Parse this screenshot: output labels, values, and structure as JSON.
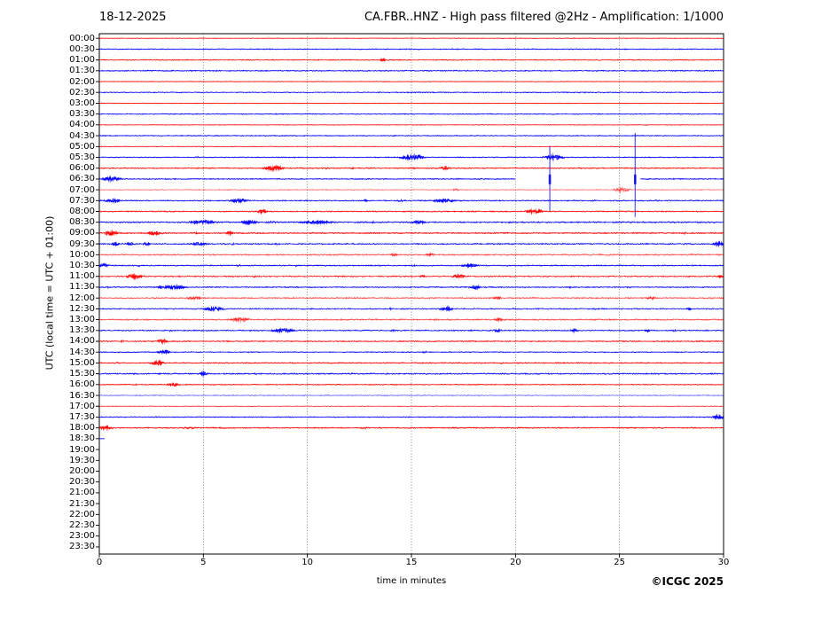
{
  "header": {
    "date": "18-12-2025",
    "title": "CA.FBR..HNZ - High pass filtered @2Hz - Amplification: 1/1000"
  },
  "footer": {
    "copyright": "©ICGC 2025"
  },
  "chart_data": {
    "type": "line",
    "variant": "helicorder-drumplot",
    "title": "CA.FBR..HNZ - High pass filtered @2Hz - Amplification: 1/1000",
    "date_label": "18-12-2025",
    "xlabel": "time in minutes",
    "ylabel": "UTC (local time = UTC + 01:00)",
    "xlim": [
      0,
      30
    ],
    "x_ticks": [
      0,
      5,
      10,
      15,
      20,
      25,
      30
    ],
    "grid": "dotted-vertical-at-5-10-15-20-25",
    "legend": "none",
    "colors": {
      "red": "#ff0000",
      "blue": "#0000ff",
      "grid": "#666666",
      "frame": "#000000"
    },
    "row_minutes_span": 30,
    "rows": [
      {
        "label": "00:00",
        "color": "red",
        "style": "normal",
        "noise": 0.4,
        "events": []
      },
      {
        "label": "00:30",
        "color": "blue",
        "style": "normal",
        "noise": 0.6,
        "events": []
      },
      {
        "label": "01:00",
        "color": "red",
        "style": "normal",
        "noise": 0.6,
        "events": [
          [
            13.5,
            13.75,
            2.2
          ]
        ]
      },
      {
        "label": "01:30",
        "color": "blue",
        "style": "normal",
        "noise": 0.7,
        "events": []
      },
      {
        "label": "02:00",
        "color": "red",
        "style": "normal",
        "noise": 0.4,
        "events": []
      },
      {
        "label": "02:30",
        "color": "blue",
        "style": "normal",
        "noise": 0.6,
        "events": []
      },
      {
        "label": "03:00",
        "color": "red",
        "style": "normal",
        "noise": 0.4,
        "events": []
      },
      {
        "label": "03:30",
        "color": "blue",
        "style": "normal",
        "noise": 0.6,
        "events": []
      },
      {
        "label": "04:00",
        "color": "red",
        "style": "normal",
        "noise": 0.4,
        "events": []
      },
      {
        "label": "04:30",
        "color": "blue",
        "style": "normal",
        "noise": 0.6,
        "events": []
      },
      {
        "label": "05:00",
        "color": "red",
        "style": "normal",
        "noise": 0.4,
        "events": []
      },
      {
        "label": "05:30",
        "color": "blue",
        "style": "normal",
        "noise": 0.6,
        "events": [
          [
            4.6,
            4.85,
            1.4
          ],
          [
            9.3,
            9.5,
            1.2
          ],
          [
            14.5,
            15.6,
            3.2
          ],
          [
            21.4,
            22.3,
            3.2
          ]
        ]
      },
      {
        "label": "06:00",
        "color": "red",
        "style": "normal",
        "noise": 0.7,
        "events": [
          [
            7.9,
            8.9,
            3.0
          ],
          [
            10.8,
            11.1,
            1.4
          ],
          [
            12.0,
            12.3,
            1.2
          ],
          [
            13.0,
            13.3,
            1.2
          ],
          [
            15.0,
            15.3,
            1.2
          ],
          [
            16.4,
            16.8,
            2.2
          ]
        ]
      },
      {
        "label": "06:30",
        "color": "blue",
        "style": "normal",
        "noise": 0.7,
        "segments": [
          [
            0,
            20
          ],
          [
            26,
            30
          ]
        ],
        "events": [
          [
            0.2,
            1.0,
            2.8
          ],
          [
            17.0,
            17.3,
            1.2
          ]
        ],
        "spikes": [
          [
            21.65,
            3.0,
            2.95
          ],
          [
            25.75,
            4.25,
            3.5
          ]
        ]
      },
      {
        "label": "07:00",
        "color": "red",
        "style": "pale",
        "noise": 0.7,
        "events": [
          [
            17.0,
            17.3,
            2.0
          ],
          [
            24.7,
            25.5,
            2.8
          ]
        ]
      },
      {
        "label": "07:30",
        "color": "blue",
        "style": "normal",
        "noise": 0.7,
        "events": [
          [
            0.3,
            1.0,
            2.4
          ],
          [
            6.3,
            7.1,
            2.4
          ],
          [
            12.7,
            12.95,
            1.8
          ],
          [
            14.2,
            14.9,
            1.4
          ],
          [
            16.0,
            17.1,
            2.2
          ],
          [
            23.6,
            23.85,
            1.5
          ]
        ]
      },
      {
        "label": "08:00",
        "color": "red",
        "style": "normal",
        "noise": 0.7,
        "events": [
          [
            0.5,
            0.75,
            1.4
          ],
          [
            7.6,
            8.05,
            2.4
          ],
          [
            14.5,
            14.75,
            1.2
          ],
          [
            19.0,
            19.2,
            1.2
          ],
          [
            20.5,
            21.3,
            2.8
          ]
        ]
      },
      {
        "label": "08:30",
        "color": "blue",
        "style": "normal",
        "noise": 0.8,
        "events": [
          [
            4.4,
            5.6,
            2.4
          ],
          [
            6.8,
            7.6,
            2.4
          ],
          [
            8.0,
            8.6,
            1.5
          ],
          [
            9.6,
            11.3,
            2.0
          ],
          [
            13.0,
            13.25,
            1.4
          ],
          [
            15.0,
            15.7,
            2.0
          ],
          [
            26.0,
            26.25,
            1.2
          ]
        ]
      },
      {
        "label": "09:00",
        "color": "red",
        "style": "normal",
        "noise": 0.8,
        "events": [
          [
            0.3,
            0.9,
            3.2
          ],
          [
            2.3,
            3.0,
            2.4
          ],
          [
            4.5,
            4.75,
            1.4
          ],
          [
            6.1,
            6.45,
            2.0
          ],
          [
            18.0,
            18.25,
            1.4
          ],
          [
            28.0,
            28.25,
            1.4
          ]
        ]
      },
      {
        "label": "09:30",
        "color": "blue",
        "style": "normal",
        "noise": 0.8,
        "events": [
          [
            0.6,
            1.0,
            2.0
          ],
          [
            1.3,
            1.65,
            2.0
          ],
          [
            2.1,
            2.45,
            2.0
          ],
          [
            3.0,
            3.25,
            1.5
          ],
          [
            4.4,
            5.2,
            2.0
          ],
          [
            6.3,
            6.55,
            1.5
          ],
          [
            8.4,
            8.65,
            1.5
          ],
          [
            28.0,
            28.2,
            1.4
          ],
          [
            29.5,
            30,
            2.8
          ]
        ]
      },
      {
        "label": "10:00",
        "color": "red",
        "style": "fuzzy",
        "noise": 0.9,
        "events": [
          [
            14.0,
            14.35,
            1.8
          ],
          [
            15.7,
            16.1,
            2.2
          ],
          [
            28.3,
            28.55,
            1.4
          ]
        ]
      },
      {
        "label": "10:30",
        "color": "blue",
        "style": "normal",
        "noise": 0.7,
        "events": [
          [
            0.0,
            0.45,
            2.4
          ],
          [
            1.8,
            2.05,
            1.4
          ],
          [
            6.6,
            6.85,
            1.4
          ],
          [
            9.3,
            9.55,
            1.4
          ],
          [
            15.0,
            15.25,
            1.4
          ],
          [
            17.4,
            18.2,
            2.0
          ],
          [
            19.5,
            19.75,
            1.4
          ]
        ]
      },
      {
        "label": "11:00",
        "color": "red",
        "style": "normal",
        "noise": 0.7,
        "events": [
          [
            1.3,
            2.1,
            2.8
          ],
          [
            3.7,
            3.95,
            1.4
          ],
          [
            7.3,
            7.55,
            1.4
          ],
          [
            11.3,
            11.55,
            1.4
          ],
          [
            15.4,
            15.65,
            1.8
          ],
          [
            17.0,
            17.6,
            2.4
          ],
          [
            19.0,
            19.25,
            1.4
          ],
          [
            29.7,
            30,
            1.8
          ]
        ]
      },
      {
        "label": "11:30",
        "color": "blue",
        "style": "normal",
        "noise": 0.7,
        "events": [
          [
            0.3,
            0.55,
            1.4
          ],
          [
            2.8,
            4.2,
            2.4
          ],
          [
            17.8,
            18.3,
            2.4
          ],
          [
            22.5,
            22.75,
            1.4
          ],
          [
            25.3,
            25.55,
            1.4
          ]
        ]
      },
      {
        "label": "12:00",
        "color": "red",
        "style": "fuzzy",
        "noise": 0.9,
        "events": [
          [
            0.8,
            1.05,
            1.4
          ],
          [
            4.2,
            4.9,
            2.4
          ],
          [
            7.9,
            8.15,
            1.4
          ],
          [
            13.7,
            13.95,
            1.4
          ],
          [
            18.9,
            19.3,
            2.4
          ],
          [
            20.7,
            20.95,
            1.4
          ],
          [
            22.8,
            23.05,
            1.4
          ],
          [
            26.3,
            26.7,
            2.4
          ],
          [
            29.3,
            29.55,
            1.4
          ]
        ]
      },
      {
        "label": "12:30",
        "color": "blue",
        "style": "normal",
        "noise": 0.7,
        "events": [
          [
            5.0,
            6.0,
            2.4
          ],
          [
            13.9,
            14.15,
            1.4
          ],
          [
            16.4,
            17.0,
            2.4
          ],
          [
            19.8,
            20.05,
            1.4
          ],
          [
            23.8,
            24.05,
            1.4
          ],
          [
            28.2,
            28.45,
            1.8
          ]
        ]
      },
      {
        "label": "13:00",
        "color": "red",
        "style": "fuzzy",
        "noise": 0.9,
        "events": [
          [
            1.2,
            1.45,
            1.4
          ],
          [
            6.3,
            7.2,
            2.8
          ],
          [
            12.0,
            12.25,
            1.4
          ],
          [
            16.0,
            16.3,
            1.4
          ],
          [
            19.0,
            19.4,
            2.4
          ],
          [
            20.9,
            21.15,
            1.4
          ]
        ]
      },
      {
        "label": "13:30",
        "color": "blue",
        "style": "normal",
        "noise": 0.7,
        "events": [
          [
            3.3,
            3.55,
            1.4
          ],
          [
            8.3,
            9.4,
            2.4
          ],
          [
            14.0,
            14.25,
            1.4
          ],
          [
            19.0,
            19.25,
            2.4
          ],
          [
            22.7,
            23.0,
            2.4
          ],
          [
            26.2,
            26.45,
            2.0
          ],
          [
            27.5,
            27.75,
            1.4
          ]
        ]
      },
      {
        "label": "14:00",
        "color": "red",
        "style": "normal",
        "noise": 0.7,
        "events": [
          [
            1.0,
            1.25,
            1.4
          ],
          [
            2.8,
            3.3,
            2.8
          ],
          [
            11.0,
            11.25,
            1.0
          ],
          [
            17.8,
            18.05,
            1.0
          ]
        ]
      },
      {
        "label": "14:30",
        "color": "blue",
        "style": "normal",
        "noise": 0.6,
        "events": [
          [
            0.8,
            1.05,
            1.4
          ],
          [
            2.8,
            3.4,
            2.4
          ],
          [
            15.5,
            15.75,
            1.4
          ],
          [
            27.9,
            28.15,
            1.0
          ]
        ]
      },
      {
        "label": "15:00",
        "color": "red",
        "style": "normal",
        "noise": 0.7,
        "events": [
          [
            0.8,
            1.05,
            1.4
          ],
          [
            2.5,
            3.1,
            2.8
          ],
          [
            16.5,
            16.75,
            1.0
          ],
          [
            19.2,
            19.45,
            1.4
          ]
        ]
      },
      {
        "label": "15:30",
        "color": "blue",
        "style": "normal",
        "noise": 0.8,
        "events": [
          [
            3.0,
            3.25,
            1.4
          ],
          [
            4.8,
            5.2,
            2.4
          ],
          [
            12.0,
            12.25,
            1.0
          ],
          [
            25.0,
            25.25,
            1.0
          ]
        ]
      },
      {
        "label": "16:00",
        "color": "red",
        "style": "normal",
        "noise": 0.6,
        "events": [
          [
            1.6,
            1.85,
            1.4
          ],
          [
            3.3,
            3.8,
            2.4
          ]
        ]
      },
      {
        "label": "16:30",
        "color": "blue",
        "style": "pale",
        "noise": 0.8,
        "events": []
      },
      {
        "label": "17:00",
        "color": "red",
        "style": "normal",
        "noise": 0.35,
        "events": []
      },
      {
        "label": "17:30",
        "color": "blue",
        "style": "normal",
        "noise": 0.6,
        "events": [
          [
            29.5,
            30,
            2.8
          ]
        ]
      },
      {
        "label": "18:00",
        "color": "red",
        "style": "normal",
        "noise": 0.7,
        "events": [
          [
            0.0,
            0.6,
            2.8
          ],
          [
            3.9,
            4.6,
            1.4
          ],
          [
            5.3,
            6.3,
            1.2
          ],
          [
            8.1,
            8.35,
            1.4
          ],
          [
            12.5,
            13.0,
            1.4
          ],
          [
            20.0,
            20.25,
            1.0
          ]
        ]
      },
      {
        "label": "18:30",
        "color": "blue",
        "style": "normal",
        "noise": 0.5,
        "segments": [
          [
            0,
            0.25
          ]
        ],
        "events": []
      },
      {
        "label": "19:00",
        "color": "red",
        "style": "none",
        "noise": 0,
        "events": []
      },
      {
        "label": "19:30",
        "color": "blue",
        "style": "none",
        "noise": 0,
        "events": []
      },
      {
        "label": "20:00",
        "color": "red",
        "style": "none",
        "noise": 0,
        "events": []
      },
      {
        "label": "20:30",
        "color": "blue",
        "style": "none",
        "noise": 0,
        "events": []
      },
      {
        "label": "21:00",
        "color": "red",
        "style": "none",
        "noise": 0,
        "events": []
      },
      {
        "label": "21:30",
        "color": "blue",
        "style": "none",
        "noise": 0,
        "events": []
      },
      {
        "label": "22:00",
        "color": "red",
        "style": "none",
        "noise": 0,
        "events": []
      },
      {
        "label": "22:30",
        "color": "blue",
        "style": "none",
        "noise": 0,
        "events": []
      },
      {
        "label": "23:00",
        "color": "red",
        "style": "none",
        "noise": 0,
        "events": []
      },
      {
        "label": "23:30",
        "color": "blue",
        "style": "none",
        "noise": 0,
        "events": []
      }
    ]
  }
}
